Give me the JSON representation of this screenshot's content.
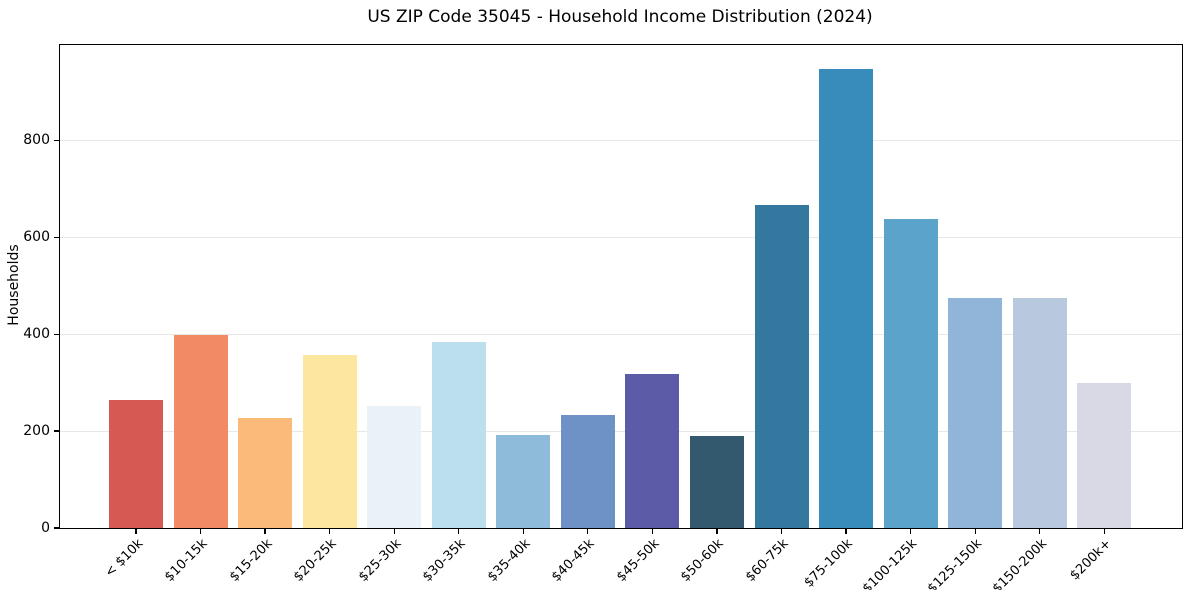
{
  "chart_data": {
    "type": "bar",
    "title": "US ZIP Code 35045 - Household Income Distribution (2024)",
    "xlabel": "",
    "ylabel": "Households",
    "categories": [
      "< $10k",
      "$10-15k",
      "$15-20k",
      "$20-25k",
      "$25-30k",
      "$30-35k",
      "$35-40k",
      "$40-45k",
      "$45-50k",
      "$50-60k",
      "$60-75k",
      "$75-100k",
      "$100-125k",
      "$125-150k",
      "$150-200k",
      "$200k+"
    ],
    "values": [
      265,
      398,
      228,
      357,
      252,
      385,
      193,
      234,
      318,
      189,
      667,
      948,
      638,
      475,
      475,
      300
    ],
    "bar_colors": [
      "#d65a53",
      "#f28a66",
      "#fcba7a",
      "#fde7a0",
      "#e8f2f8",
      "#bcdfee",
      "#8fbbdb",
      "#6e92c5",
      "#5c5ba8",
      "#33596e",
      "#34789f",
      "#378cbc",
      "#5ba3cb",
      "#90b5d9",
      "#b8c8de",
      "#d9d9e5"
    ],
    "yticks": [
      0,
      200,
      400,
      600,
      800
    ],
    "ylim": [
      0,
      997
    ],
    "grid": "horizontal-only",
    "grid_color": "#e7e7e7",
    "axis_color": "#000000",
    "background_color": "#ffffff",
    "legend": "none",
    "x_tick_label_rotation_deg": 45
  }
}
